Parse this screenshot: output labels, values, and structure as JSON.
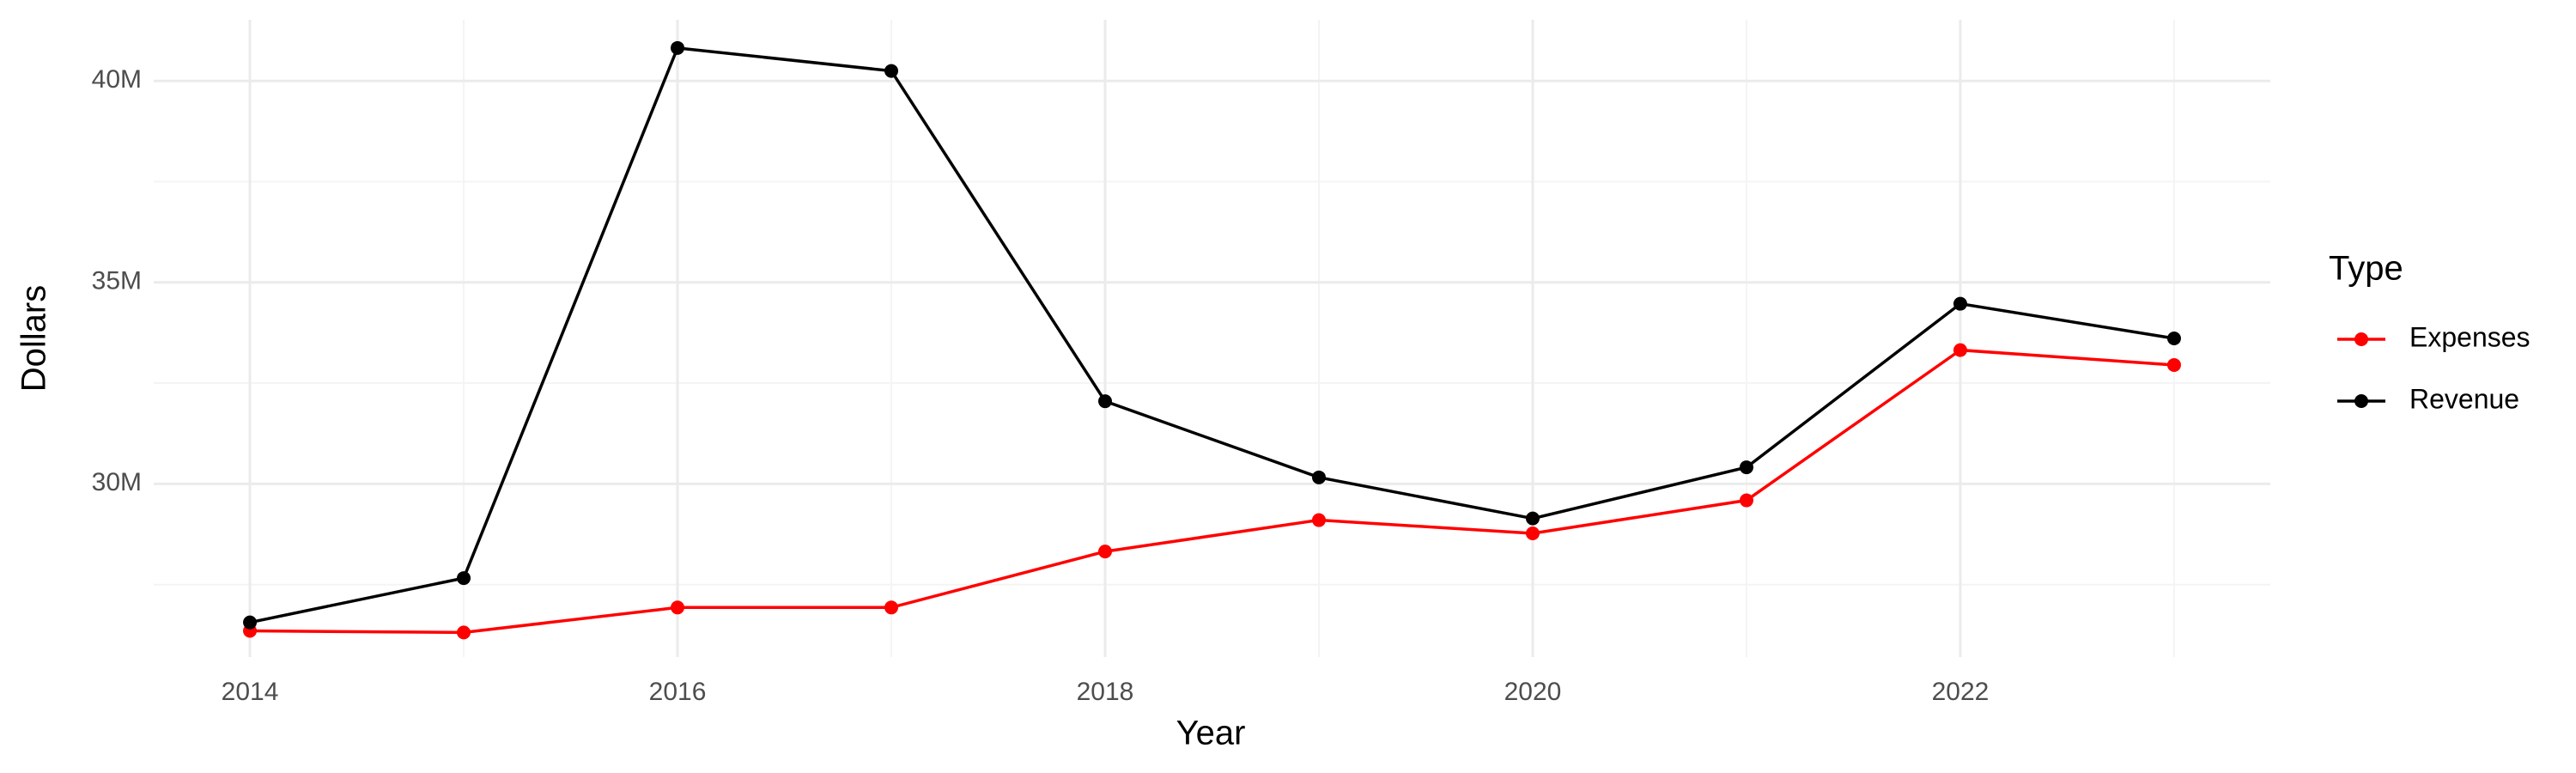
{
  "chart_data": {
    "type": "line",
    "x_label": "Year",
    "y_label": "Dollars",
    "legend_title": "Type",
    "x": [
      2014,
      2015,
      2016,
      2017,
      2018,
      2019,
      2020,
      2021,
      2022,
      2023
    ],
    "series": [
      {
        "name": "Expenses",
        "color": "#ff0000",
        "values": [
          26350000,
          26310000,
          26930000,
          26930000,
          28320000,
          29100000,
          28770000,
          29590000,
          33320000,
          32950000
        ]
      },
      {
        "name": "Revenue",
        "color": "#000000",
        "values": [
          26560000,
          27660000,
          40820000,
          40250000,
          32050000,
          30160000,
          29140000,
          30410000,
          34470000,
          33610000
        ]
      }
    ],
    "xlim": [
      2013.55,
      2023.45
    ],
    "xticks": [
      2014,
      2016,
      2018,
      2020,
      2022
    ],
    "ylim": [
      25700000,
      41520000
    ],
    "yticks": [
      {
        "value": 30000000,
        "label": "30M"
      },
      {
        "value": 35000000,
        "label": "35M"
      },
      {
        "value": 40000000,
        "label": "40M"
      }
    ],
    "grid": true,
    "legend": "right"
  }
}
